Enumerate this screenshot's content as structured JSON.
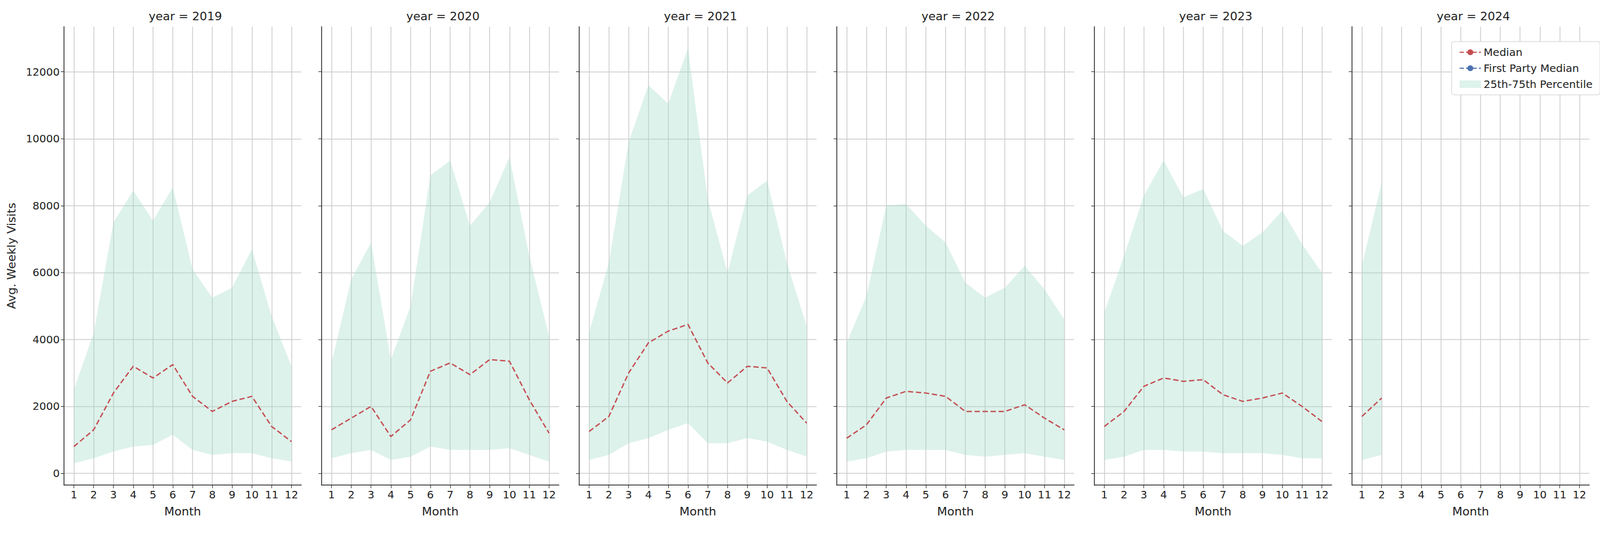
{
  "chart_data": [
    {
      "type": "line",
      "title": "year = 2019",
      "x_label": "Month",
      "y_label": "Avg. Weekly Visits",
      "x": [
        1,
        2,
        3,
        4,
        5,
        6,
        7,
        8,
        9,
        10,
        11,
        12
      ],
      "xlim": [
        0.5,
        12.5
      ],
      "xticks": [
        1,
        2,
        3,
        4,
        5,
        6,
        7,
        8,
        9,
        10,
        11,
        12
      ],
      "ylim": [
        -350,
        13350
      ],
      "yticks": [
        0,
        2000,
        4000,
        6000,
        8000,
        10000,
        12000
      ],
      "grid": true,
      "series": [
        {
          "name": "Median",
          "color": "#c44e52",
          "line_style": "dashed",
          "values": [
            800,
            1300,
            2400,
            3200,
            2850,
            3250,
            2300,
            1850,
            2150,
            2300,
            1400,
            950
          ]
        },
        {
          "name": "First Party Median",
          "color": "#4c72b0",
          "line_style": "dashed",
          "values": [
            null,
            null,
            null,
            null,
            null,
            null,
            null,
            null,
            null,
            null,
            null,
            null
          ]
        },
        {
          "name": "25th-75th Percentile",
          "type": "band",
          "color": "#9fd9c6",
          "lower": [
            300,
            450,
            650,
            800,
            850,
            1150,
            700,
            550,
            600,
            600,
            450,
            350
          ],
          "upper": [
            2500,
            4200,
            7500,
            8450,
            7550,
            8550,
            6100,
            5250,
            5550,
            6700,
            4700,
            3200
          ]
        }
      ]
    },
    {
      "type": "line",
      "title": "year = 2020",
      "x_label": "Month",
      "tick_labels": "x",
      "x": [
        1,
        2,
        3,
        4,
        5,
        6,
        7,
        8,
        9,
        10,
        11,
        12
      ],
      "xlim": [
        0.5,
        12.5
      ],
      "xticks": [
        1,
        2,
        3,
        4,
        5,
        6,
        7,
        8,
        9,
        10,
        11,
        12
      ],
      "ylim": [
        -350,
        13350
      ],
      "yticks": [
        0,
        2000,
        4000,
        6000,
        8000,
        10000,
        12000
      ],
      "grid": true,
      "series": [
        {
          "name": "Median",
          "color": "#c44e52",
          "line_style": "dashed",
          "values": [
            1300,
            1650,
            2000,
            1100,
            1600,
            3050,
            3300,
            2950,
            3400,
            3350,
            2200,
            1200
          ]
        },
        {
          "name": "First Party Median",
          "color": "#4c72b0",
          "line_style": "dashed",
          "values": [
            null,
            null,
            null,
            null,
            null,
            null,
            null,
            null,
            null,
            null,
            null,
            null
          ]
        },
        {
          "name": "25th-75th Percentile",
          "type": "band",
          "color": "#9fd9c6",
          "lower": [
            450,
            600,
            700,
            400,
            500,
            800,
            700,
            700,
            700,
            750,
            550,
            350
          ],
          "upper": [
            3300,
            5800,
            6900,
            3400,
            5000,
            8900,
            9350,
            7400,
            8100,
            9450,
            6500,
            4100
          ]
        }
      ]
    },
    {
      "type": "line",
      "title": "year = 2021",
      "x_label": "Month",
      "tick_labels": "x",
      "x": [
        1,
        2,
        3,
        4,
        5,
        6,
        7,
        8,
        9,
        10,
        11,
        12
      ],
      "xlim": [
        0.5,
        12.5
      ],
      "xticks": [
        1,
        2,
        3,
        4,
        5,
        6,
        7,
        8,
        9,
        10,
        11,
        12
      ],
      "ylim": [
        -350,
        13350
      ],
      "yticks": [
        0,
        2000,
        4000,
        6000,
        8000,
        10000,
        12000
      ],
      "grid": true,
      "series": [
        {
          "name": "Median",
          "color": "#c44e52",
          "line_style": "dashed",
          "values": [
            1250,
            1700,
            3000,
            3900,
            4250,
            4450,
            3300,
            2700,
            3200,
            3150,
            2150,
            1500
          ]
        },
        {
          "name": "First Party Median",
          "color": "#4c72b0",
          "line_style": "dashed",
          "values": [
            null,
            null,
            null,
            null,
            null,
            null,
            null,
            null,
            null,
            null,
            null,
            null
          ]
        },
        {
          "name": "25th-75th Percentile",
          "type": "band",
          "color": "#9fd9c6",
          "lower": [
            400,
            550,
            900,
            1050,
            1300,
            1500,
            900,
            900,
            1050,
            950,
            700,
            500
          ],
          "upper": [
            4200,
            6300,
            9900,
            11600,
            11050,
            12700,
            8200,
            6000,
            8300,
            8750,
            6300,
            4400
          ]
        }
      ]
    },
    {
      "type": "line",
      "title": "year = 2022",
      "x_label": "Month",
      "tick_labels": "x",
      "x": [
        1,
        2,
        3,
        4,
        5,
        6,
        7,
        8,
        9,
        10,
        11,
        12
      ],
      "xlim": [
        0.5,
        12.5
      ],
      "xticks": [
        1,
        2,
        3,
        4,
        5,
        6,
        7,
        8,
        9,
        10,
        11,
        12
      ],
      "ylim": [
        -350,
        13350
      ],
      "yticks": [
        0,
        2000,
        4000,
        6000,
        8000,
        10000,
        12000
      ],
      "grid": true,
      "series": [
        {
          "name": "Median",
          "color": "#c44e52",
          "line_style": "dashed",
          "values": [
            1050,
            1450,
            2250,
            2450,
            2400,
            2300,
            1850,
            1850,
            1850,
            2050,
            1650,
            1300
          ]
        },
        {
          "name": "First Party Median",
          "color": "#4c72b0",
          "line_style": "dashed",
          "values": [
            null,
            null,
            null,
            null,
            null,
            null,
            null,
            null,
            null,
            null,
            null,
            null
          ]
        },
        {
          "name": "25th-75th Percentile",
          "type": "band",
          "color": "#9fd9c6",
          "lower": [
            350,
            450,
            650,
            700,
            700,
            700,
            550,
            500,
            550,
            600,
            500,
            400
          ],
          "upper": [
            3900,
            5300,
            8000,
            8050,
            7400,
            6900,
            5700,
            5250,
            5550,
            6200,
            5500,
            4600
          ]
        }
      ]
    },
    {
      "type": "line",
      "title": "year = 2023",
      "x_label": "Month",
      "tick_labels": "x",
      "x": [
        1,
        2,
        3,
        4,
        5,
        6,
        7,
        8,
        9,
        10,
        11,
        12
      ],
      "xlim": [
        0.5,
        12.5
      ],
      "xticks": [
        1,
        2,
        3,
        4,
        5,
        6,
        7,
        8,
        9,
        10,
        11,
        12
      ],
      "ylim": [
        -350,
        13350
      ],
      "yticks": [
        0,
        2000,
        4000,
        6000,
        8000,
        10000,
        12000
      ],
      "grid": true,
      "series": [
        {
          "name": "Median",
          "color": "#c44e52",
          "line_style": "dashed",
          "values": [
            1400,
            1850,
            2600,
            2850,
            2750,
            2800,
            2350,
            2150,
            2250,
            2400,
            2000,
            1550
          ]
        },
        {
          "name": "First Party Median",
          "color": "#4c72b0",
          "line_style": "dashed",
          "values": [
            null,
            null,
            null,
            null,
            null,
            null,
            null,
            null,
            null,
            null,
            null,
            null
          ]
        },
        {
          "name": "25th-75th Percentile",
          "type": "band",
          "color": "#9fd9c6",
          "lower": [
            400,
            500,
            700,
            700,
            650,
            650,
            600,
            600,
            600,
            550,
            450,
            450
          ],
          "upper": [
            4800,
            6500,
            8300,
            9350,
            8250,
            8500,
            7250,
            6800,
            7200,
            7850,
            6850,
            6000
          ]
        }
      ]
    },
    {
      "type": "line",
      "title": "year = 2024",
      "x_label": "Month",
      "tick_labels": "x",
      "legend": "upper right",
      "x": [
        1,
        2,
        3,
        4,
        5,
        6,
        7,
        8,
        9,
        10,
        11,
        12
      ],
      "xlim": [
        0.5,
        12.5
      ],
      "xticks": [
        1,
        2,
        3,
        4,
        5,
        6,
        7,
        8,
        9,
        10,
        11,
        12
      ],
      "ylim": [
        -350,
        13350
      ],
      "yticks": [
        0,
        2000,
        4000,
        6000,
        8000,
        10000,
        12000
      ],
      "grid": true,
      "series": [
        {
          "name": "Median",
          "color": "#c44e52",
          "line_style": "dashed",
          "values": [
            1700,
            2250,
            null,
            null,
            null,
            null,
            null,
            null,
            null,
            null,
            null,
            null
          ]
        },
        {
          "name": "First Party Median",
          "color": "#4c72b0",
          "line_style": "dashed",
          "values": [
            null,
            null,
            null,
            null,
            null,
            null,
            null,
            null,
            null,
            null,
            null,
            null
          ]
        },
        {
          "name": "25th-75th Percentile",
          "type": "band",
          "color": "#9fd9c6",
          "lower": [
            400,
            550,
            null,
            null,
            null,
            null,
            null,
            null,
            null,
            null,
            null,
            null
          ],
          "upper": [
            6200,
            8700,
            null,
            null,
            null,
            null,
            null,
            null,
            null,
            null,
            null,
            null
          ]
        }
      ]
    }
  ]
}
